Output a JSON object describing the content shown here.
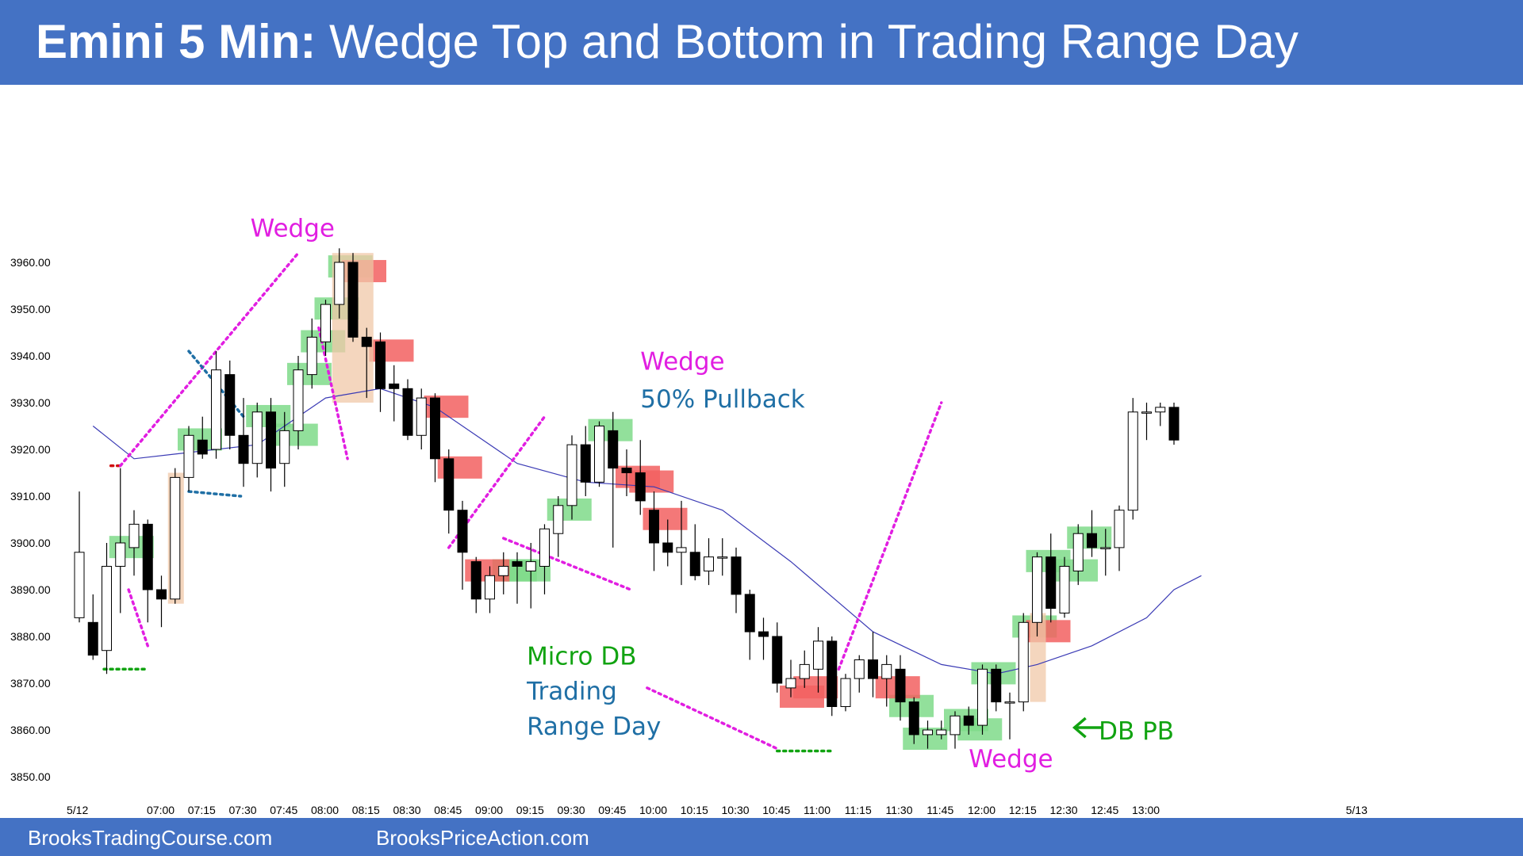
{
  "header": {
    "title_bold": "Emini 5 Min:",
    "title_rest": "Wedge Top and Bottom in Trading Range Day"
  },
  "footer": {
    "left_link": "BrooksTradingCourse.com",
    "right_link": "BrooksPriceAction.com"
  },
  "colors": {
    "header_bg": "#4472c4",
    "bull_signal": "#7fdb8a",
    "bear_signal": "#f26060",
    "magenta": "#e11ee1",
    "teal": "#1f6fa5",
    "green_text": "#11a311",
    "blue_text": "#1f6fa5",
    "ema": "#3b3bb5",
    "spike_box": "#f0c8a8"
  },
  "chart_data": {
    "type": "candlestick",
    "title": "Emini 5 Min: Wedge Top and Bottom in Trading Range Day",
    "y_ticks": [
      "3960.00",
      "3950.00",
      "3940.00",
      "3930.00",
      "3920.00",
      "3910.00",
      "3900.00",
      "3890.00",
      "3880.00",
      "3870.00",
      "3860.00",
      "3850.00"
    ],
    "ylim": [
      3848,
      3970
    ],
    "x_ticks": [
      "5/12",
      "07:00",
      "07:15",
      "07:30",
      "07:45",
      "08:00",
      "08:15",
      "08:30",
      "08:45",
      "09:00",
      "09:15",
      "09:30",
      "09:45",
      "10:00",
      "10:15",
      "10:30",
      "10:45",
      "11:00",
      "11:15",
      "11:30",
      "11:45",
      "12:00",
      "12:15",
      "12:30",
      "12:45",
      "13:00",
      "5/13"
    ],
    "grid": false,
    "candles": [
      {
        "o": 3884,
        "h": 3911,
        "l": 3883,
        "c": 3898
      },
      {
        "o": 3883,
        "h": 3889,
        "l": 3875,
        "c": 3876
      },
      {
        "o": 3877,
        "h": 3900,
        "l": 3872,
        "c": 3895
      },
      {
        "o": 3895,
        "h": 3916,
        "l": 3885,
        "c": 3900
      },
      {
        "o": 3899,
        "h": 3907,
        "l": 3893,
        "c": 3904
      },
      {
        "o": 3904,
        "h": 3905,
        "l": 3883,
        "c": 3890
      },
      {
        "o": 3890,
        "h": 3893,
        "l": 3882,
        "c": 3888
      },
      {
        "o": 3888,
        "h": 3916,
        "l": 3887,
        "c": 3914
      },
      {
        "o": 3914,
        "h": 3925,
        "l": 3911,
        "c": 3923
      },
      {
        "o": 3922,
        "h": 3927,
        "l": 3918,
        "c": 3919
      },
      {
        "o": 3920,
        "h": 3941,
        "l": 3918,
        "c": 3937
      },
      {
        "o": 3936,
        "h": 3939,
        "l": 3920,
        "c": 3923
      },
      {
        "o": 3923,
        "h": 3931,
        "l": 3912,
        "c": 3917
      },
      {
        "o": 3917,
        "h": 3930,
        "l": 3914,
        "c": 3928
      },
      {
        "o": 3928,
        "h": 3931,
        "l": 3911,
        "c": 3916
      },
      {
        "o": 3917,
        "h": 3928,
        "l": 3912,
        "c": 3924
      },
      {
        "o": 3924,
        "h": 3940,
        "l": 3920,
        "c": 3937
      },
      {
        "o": 3936,
        "h": 3948,
        "l": 3933,
        "c": 3944
      },
      {
        "o": 3943,
        "h": 3952,
        "l": 3940,
        "c": 3951
      },
      {
        "o": 3951,
        "h": 3963,
        "l": 3948,
        "c": 3960
      },
      {
        "o": 3960,
        "h": 3962,
        "l": 3943,
        "c": 3944
      },
      {
        "o": 3944,
        "h": 3946,
        "l": 3931,
        "c": 3942
      },
      {
        "o": 3943,
        "h": 3945,
        "l": 3928,
        "c": 3933
      },
      {
        "o": 3934,
        "h": 3938,
        "l": 3926,
        "c": 3933
      },
      {
        "o": 3933,
        "h": 3935,
        "l": 3922,
        "c": 3923
      },
      {
        "o": 3923,
        "h": 3933,
        "l": 3920,
        "c": 3931
      },
      {
        "o": 3931,
        "h": 3932,
        "l": 3913,
        "c": 3918
      },
      {
        "o": 3918,
        "h": 3920,
        "l": 3902,
        "c": 3907
      },
      {
        "o": 3907,
        "h": 3909,
        "l": 3890,
        "c": 3898
      },
      {
        "o": 3896,
        "h": 3897,
        "l": 3885,
        "c": 3888
      },
      {
        "o": 3888,
        "h": 3895,
        "l": 3885,
        "c": 3893
      },
      {
        "o": 3893,
        "h": 3898,
        "l": 3889,
        "c": 3895
      },
      {
        "o": 3896,
        "h": 3898,
        "l": 3887,
        "c": 3895
      },
      {
        "o": 3894,
        "h": 3900,
        "l": 3886,
        "c": 3896
      },
      {
        "o": 3895,
        "h": 3904,
        "l": 3889,
        "c": 3903
      },
      {
        "o": 3902,
        "h": 3910,
        "l": 3897,
        "c": 3908
      },
      {
        "o": 3908,
        "h": 3923,
        "l": 3905,
        "c": 3921
      },
      {
        "o": 3921,
        "h": 3925,
        "l": 3910,
        "c": 3913
      },
      {
        "o": 3913,
        "h": 3926,
        "l": 3912,
        "c": 3925
      },
      {
        "o": 3924,
        "h": 3928,
        "l": 3899,
        "c": 3916
      },
      {
        "o": 3916,
        "h": 3920,
        "l": 3910,
        "c": 3915
      },
      {
        "o": 3915,
        "h": 3922,
        "l": 3906,
        "c": 3909
      },
      {
        "o": 3907,
        "h": 3911,
        "l": 3894,
        "c": 3900
      },
      {
        "o": 3900,
        "h": 3905,
        "l": 3895,
        "c": 3898
      },
      {
        "o": 3898,
        "h": 3909,
        "l": 3891,
        "c": 3899
      },
      {
        "o": 3898,
        "h": 3904,
        "l": 3892,
        "c": 3893
      },
      {
        "o": 3894,
        "h": 3901,
        "l": 3891,
        "c": 3897
      },
      {
        "o": 3897,
        "h": 3901,
        "l": 3893,
        "c": 3897
      },
      {
        "o": 3897,
        "h": 3899,
        "l": 3885,
        "c": 3889
      },
      {
        "o": 3889,
        "h": 3890,
        "l": 3875,
        "c": 3881
      },
      {
        "o": 3881,
        "h": 3884,
        "l": 3875,
        "c": 3880
      },
      {
        "o": 3880,
        "h": 3883,
        "l": 3868,
        "c": 3870
      },
      {
        "o": 3869,
        "h": 3875,
        "l": 3867,
        "c": 3871
      },
      {
        "o": 3871,
        "h": 3877,
        "l": 3869,
        "c": 3874
      },
      {
        "o": 3873,
        "h": 3882,
        "l": 3868,
        "c": 3879
      },
      {
        "o": 3879,
        "h": 3880,
        "l": 3863,
        "c": 3865
      },
      {
        "o": 3865,
        "h": 3872,
        "l": 3864,
        "c": 3871
      },
      {
        "o": 3871,
        "h": 3876,
        "l": 3868,
        "c": 3875
      },
      {
        "o": 3875,
        "h": 3881,
        "l": 3867,
        "c": 3871
      },
      {
        "o": 3871,
        "h": 3876,
        "l": 3865,
        "c": 3874
      },
      {
        "o": 3873,
        "h": 3876,
        "l": 3862,
        "c": 3866
      },
      {
        "o": 3866,
        "h": 3867,
        "l": 3857,
        "c": 3859
      },
      {
        "o": 3859,
        "h": 3862,
        "l": 3856,
        "c": 3860
      },
      {
        "o": 3859,
        "h": 3862,
        "l": 3858,
        "c": 3860
      },
      {
        "o": 3859,
        "h": 3864,
        "l": 3856,
        "c": 3863
      },
      {
        "o": 3863,
        "h": 3865,
        "l": 3859,
        "c": 3861
      },
      {
        "o": 3861,
        "h": 3874,
        "l": 3859,
        "c": 3873
      },
      {
        "o": 3873,
        "h": 3874,
        "l": 3864,
        "c": 3866
      },
      {
        "o": 3866,
        "h": 3868,
        "l": 3858,
        "c": 3866
      },
      {
        "o": 3866,
        "h": 3885,
        "l": 3864,
        "c": 3883
      },
      {
        "o": 3883,
        "h": 3898,
        "l": 3880,
        "c": 3897
      },
      {
        "o": 3897,
        "h": 3902,
        "l": 3883,
        "c": 3886
      },
      {
        "o": 3885,
        "h": 3897,
        "l": 3884,
        "c": 3895
      },
      {
        "o": 3894,
        "h": 3904,
        "l": 3891,
        "c": 3902
      },
      {
        "o": 3902,
        "h": 3907,
        "l": 3897,
        "c": 3899
      },
      {
        "o": 3899,
        "h": 3903,
        "l": 3893,
        "c": 3899
      },
      {
        "o": 3899,
        "h": 3908,
        "l": 3894,
        "c": 3907
      },
      {
        "o": 3907,
        "h": 3931,
        "l": 3905,
        "c": 3928
      },
      {
        "o": 3928,
        "h": 3930,
        "l": 3922,
        "c": 3928
      },
      {
        "o": 3928,
        "h": 3930,
        "l": 3925,
        "c": 3929
      },
      {
        "o": 3929,
        "h": 3930,
        "l": 3921,
        "c": 3922
      }
    ],
    "ema": [
      [
        1,
        3925
      ],
      [
        4,
        3918
      ],
      [
        7,
        3919
      ],
      [
        13,
        3921
      ],
      [
        18,
        3931
      ],
      [
        22,
        3933
      ],
      [
        26,
        3929
      ],
      [
        32,
        3917
      ],
      [
        37,
        3913
      ],
      [
        42,
        3912
      ],
      [
        47,
        3907
      ],
      [
        52,
        3896
      ],
      [
        58,
        3881
      ],
      [
        63,
        3874
      ],
      [
        67,
        3872
      ],
      [
        70,
        3874
      ],
      [
        74,
        3878
      ],
      [
        78,
        3884
      ],
      [
        80,
        3890
      ],
      [
        82,
        3893
      ]
    ],
    "annotations": [
      {
        "text": "Wedge",
        "x": 12.5,
        "y": 3965.5,
        "color": "magenta"
      },
      {
        "text": "Wedge",
        "x": 41,
        "y": 3937,
        "color": "magenta"
      },
      {
        "text": "50% Pullback",
        "x": 41,
        "y": 3929,
        "color": "blue"
      },
      {
        "text": "Micro DB",
        "x": 32.7,
        "y": 3874,
        "color": "green"
      },
      {
        "text": "Trading",
        "x": 32.7,
        "y": 3866.5,
        "color": "blue"
      },
      {
        "text": "Range Day",
        "x": 32.7,
        "y": 3859,
        "color": "blue"
      },
      {
        "text": "Wedge",
        "x": 65,
        "y": 3852,
        "color": "magenta"
      },
      {
        "text": "DB PB",
        "x": 74.5,
        "y": 3858,
        "color": "green"
      }
    ]
  }
}
